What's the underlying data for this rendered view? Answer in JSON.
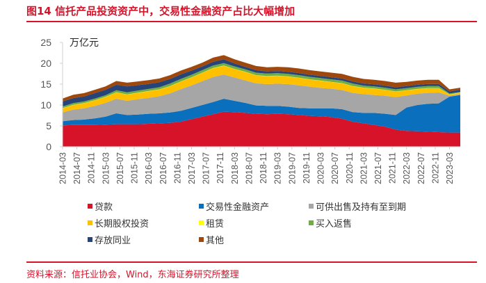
{
  "title": "图14  信托产品投资资产中，交易性金融资产占比大幅增加",
  "source": "资料来源：信托业协会，Wind，东海证券研究所整理",
  "chart_data": {
    "type": "area",
    "stacked": true,
    "title": "图14  信托产品投资资产中，交易性金融资产占比大幅增加",
    "ylabel": "万亿元",
    "xlabel": "",
    "ylim": [
      0,
      25
    ],
    "yticks": [
      0,
      5,
      10,
      15,
      20,
      25
    ],
    "grid": false,
    "legend_position": "bottom",
    "xtick_labels": [
      "2014-03",
      "2014-07",
      "2014-11",
      "2015-03",
      "2015-07",
      "2015-11",
      "2016-03",
      "2016-07",
      "2016-11",
      "2017-03",
      "2017-07",
      "2017-11",
      "2018-03",
      "2018-07",
      "2018-11",
      "2019-03",
      "2019-07",
      "2019-11",
      "2020-03",
      "2020-07",
      "2020-11",
      "2021-03",
      "2021-07",
      "2021-11",
      "2022-03",
      "2022-07",
      "2022-11",
      "2023-03"
    ],
    "x": [
      "2014-03",
      "2014-06",
      "2014-09",
      "2014-12",
      "2015-03",
      "2015-06",
      "2015-09",
      "2015-12",
      "2016-03",
      "2016-06",
      "2016-09",
      "2016-12",
      "2017-03",
      "2017-06",
      "2017-09",
      "2017-12",
      "2018-03",
      "2018-06",
      "2018-09",
      "2018-12",
      "2019-03",
      "2019-06",
      "2019-09",
      "2019-12",
      "2020-03",
      "2020-06",
      "2020-09",
      "2020-12",
      "2021-03",
      "2021-06",
      "2021-09",
      "2021-12",
      "2022-03",
      "2022-06",
      "2022-09",
      "2022-12",
      "2023-03",
      "2023-06"
    ],
    "series": [
      {
        "name": "贷款",
        "color": "#d7132a",
        "values": [
          5.1,
          5.2,
          5.2,
          5.2,
          5.3,
          5.4,
          5.4,
          5.4,
          5.5,
          5.6,
          5.7,
          6.0,
          6.6,
          7.2,
          7.8,
          8.4,
          8.3,
          8.1,
          7.9,
          7.8,
          7.9,
          7.8,
          7.6,
          7.4,
          7.3,
          7.1,
          6.7,
          6.0,
          5.6,
          5.2,
          4.8,
          4.1,
          3.8,
          3.7,
          3.6,
          3.5,
          3.4,
          3.4
        ]
      },
      {
        "name": "交易性金融资产",
        "color": "#0a6fbd",
        "values": [
          1.0,
          1.2,
          1.3,
          1.6,
          1.9,
          2.6,
          2.2,
          2.3,
          2.4,
          2.4,
          2.5,
          2.6,
          2.7,
          2.8,
          2.9,
          3.1,
          2.7,
          2.4,
          2.0,
          2.0,
          1.9,
          1.8,
          1.7,
          1.8,
          1.9,
          2.1,
          2.3,
          2.3,
          2.5,
          2.9,
          3.1,
          3.5,
          5.6,
          6.3,
          6.7,
          6.9,
          8.6,
          9.0
        ]
      },
      {
        "name": "可供出售及持有至到期",
        "color": "#a6a6a6",
        "values": [
          2.1,
          2.5,
          2.7,
          3.0,
          3.3,
          3.5,
          3.4,
          3.7,
          3.8,
          4.1,
          4.6,
          5.2,
          5.4,
          5.7,
          6.0,
          5.8,
          5.6,
          5.4,
          5.3,
          5.2,
          5.3,
          5.4,
          5.4,
          5.2,
          4.9,
          4.7,
          4.6,
          4.6,
          4.5,
          4.3,
          4.3,
          4.3,
          2.9,
          2.7,
          2.6,
          2.6,
          0.2,
          0.2
        ]
      },
      {
        "name": "长期股权投资",
        "color": "#ffc000",
        "values": [
          1.0,
          1.1,
          1.2,
          1.3,
          1.4,
          1.5,
          1.5,
          1.5,
          1.6,
          1.6,
          1.7,
          1.8,
          1.9,
          2.0,
          2.1,
          2.1,
          2.0,
          2.0,
          1.9,
          1.9,
          1.9,
          1.8,
          1.8,
          1.7,
          1.7,
          1.6,
          1.6,
          1.6,
          1.5,
          1.5,
          1.4,
          1.3,
          1.2,
          1.1,
          1.1,
          1.0,
          0.3,
          0.3
        ]
      },
      {
        "name": "租赁",
        "color": "#ffff00",
        "values": [
          0.05,
          0.05,
          0.05,
          0.05,
          0.05,
          0.05,
          0.05,
          0.05,
          0.05,
          0.05,
          0.05,
          0.05,
          0.05,
          0.05,
          0.05,
          0.05,
          0.05,
          0.05,
          0.05,
          0.05,
          0.05,
          0.05,
          0.05,
          0.05,
          0.05,
          0.05,
          0.05,
          0.05,
          0.05,
          0.05,
          0.05,
          0.05,
          0.05,
          0.05,
          0.05,
          0.05,
          0.05,
          0.05
        ]
      },
      {
        "name": "买入返售",
        "color": "#70ad47",
        "values": [
          0.4,
          0.4,
          0.4,
          0.4,
          0.4,
          0.5,
          0.5,
          0.5,
          0.5,
          0.5,
          0.6,
          0.6,
          0.6,
          0.6,
          0.6,
          0.6,
          0.6,
          0.6,
          0.6,
          0.6,
          0.6,
          0.6,
          0.6,
          0.6,
          0.6,
          0.6,
          0.6,
          0.6,
          0.5,
          0.5,
          0.5,
          0.5,
          0.5,
          0.5,
          0.5,
          0.5,
          0.2,
          0.2
        ]
      },
      {
        "name": "存放同业",
        "color": "#264478",
        "values": [
          1.2,
          1.2,
          1.2,
          1.3,
          1.3,
          1.3,
          1.4,
          1.3,
          1.2,
          1.2,
          1.1,
          1.1,
          1.0,
          0.9,
          0.9,
          0.9,
          0.7,
          0.6,
          0.6,
          0.5,
          0.5,
          0.5,
          0.5,
          0.5,
          0.5,
          0.5,
          0.5,
          0.5,
          0.5,
          0.5,
          0.5,
          0.5,
          0.5,
          0.5,
          0.5,
          0.5,
          0.5,
          0.5
        ]
      },
      {
        "name": "其他",
        "color": "#9e480e",
        "values": [
          0.7,
          0.8,
          0.8,
          0.8,
          0.8,
          0.9,
          0.9,
          0.9,
          0.9,
          0.9,
          0.9,
          0.9,
          0.9,
          0.9,
          1.0,
          1.0,
          1.0,
          1.0,
          1.0,
          1.0,
          1.0,
          1.1,
          1.1,
          1.1,
          1.1,
          1.1,
          1.1,
          1.1,
          1.1,
          1.1,
          1.1,
          1.1,
          1.0,
          1.0,
          1.0,
          1.0,
          0.5,
          0.5
        ]
      }
    ]
  }
}
